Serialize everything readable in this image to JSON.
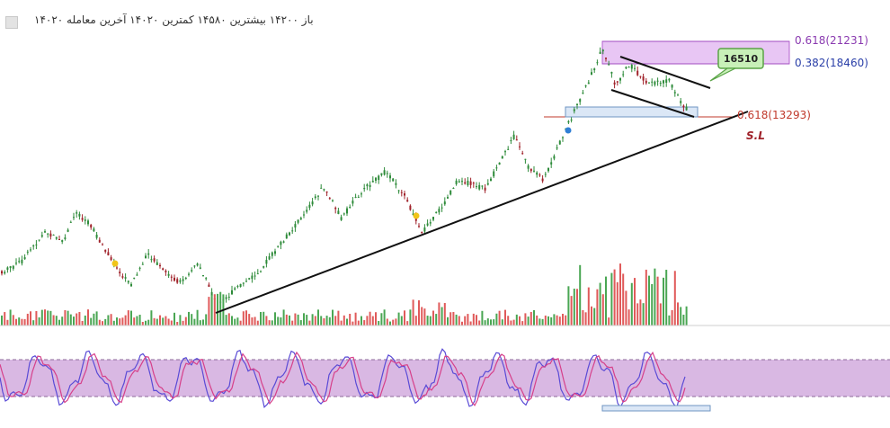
{
  "header": {
    "ohlc_text": "باز ۱۴۲۰۰ بیشترین ۱۴۵۸۰ کمترین ۱۴۰۲۰ آخرین معامله ۱۴۰۲۰"
  },
  "chart_data": {
    "type": "candlestick",
    "title": "",
    "price_range": [
      9000,
      22000
    ],
    "annotations": {
      "fib_upper": "0.618(21231)",
      "fib_upper_value": 21231,
      "fib_mid": "0.382(18460)",
      "fib_mid_value": 18460,
      "fib_lower": "0.618(13293)",
      "fib_lower_value": 13293,
      "target_callout": "16510",
      "stop_loss": "S.L"
    },
    "colors": {
      "up": "#2e8b3a",
      "down": "#a0222a",
      "volume_up": "#4aa653",
      "volume_down": "#e05a5a",
      "fib_zone": "#e8c6f4",
      "oscillator_band": "#d9b8e3",
      "callout": "#c8f0b8",
      "support_box": "#dbe7f6"
    },
    "oscillator": {
      "type": "stochastic",
      "band_levels": [
        20,
        80
      ]
    }
  }
}
